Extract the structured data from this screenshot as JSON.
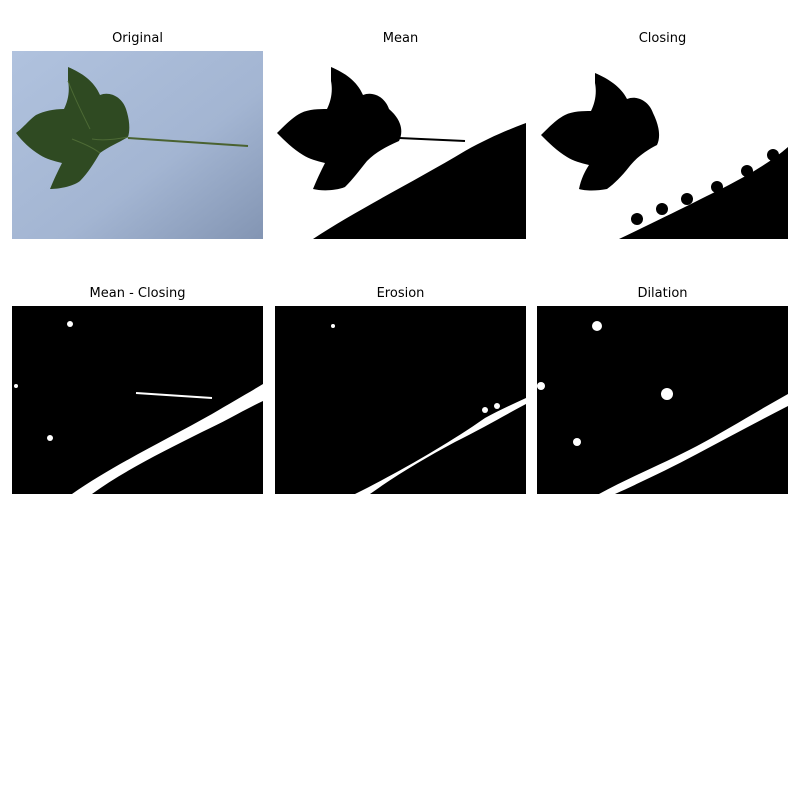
{
  "panels": [
    {
      "title": "Original"
    },
    {
      "title": "Mean"
    },
    {
      "title": "Closing"
    },
    {
      "title": "Mean - Closing"
    },
    {
      "title": "Erosion"
    },
    {
      "title": "Dilation"
    }
  ],
  "colors": {
    "paper": "#a8b9d6",
    "leaf": "#2f4a22",
    "mask_black": "#000000",
    "mask_white": "#ffffff"
  }
}
